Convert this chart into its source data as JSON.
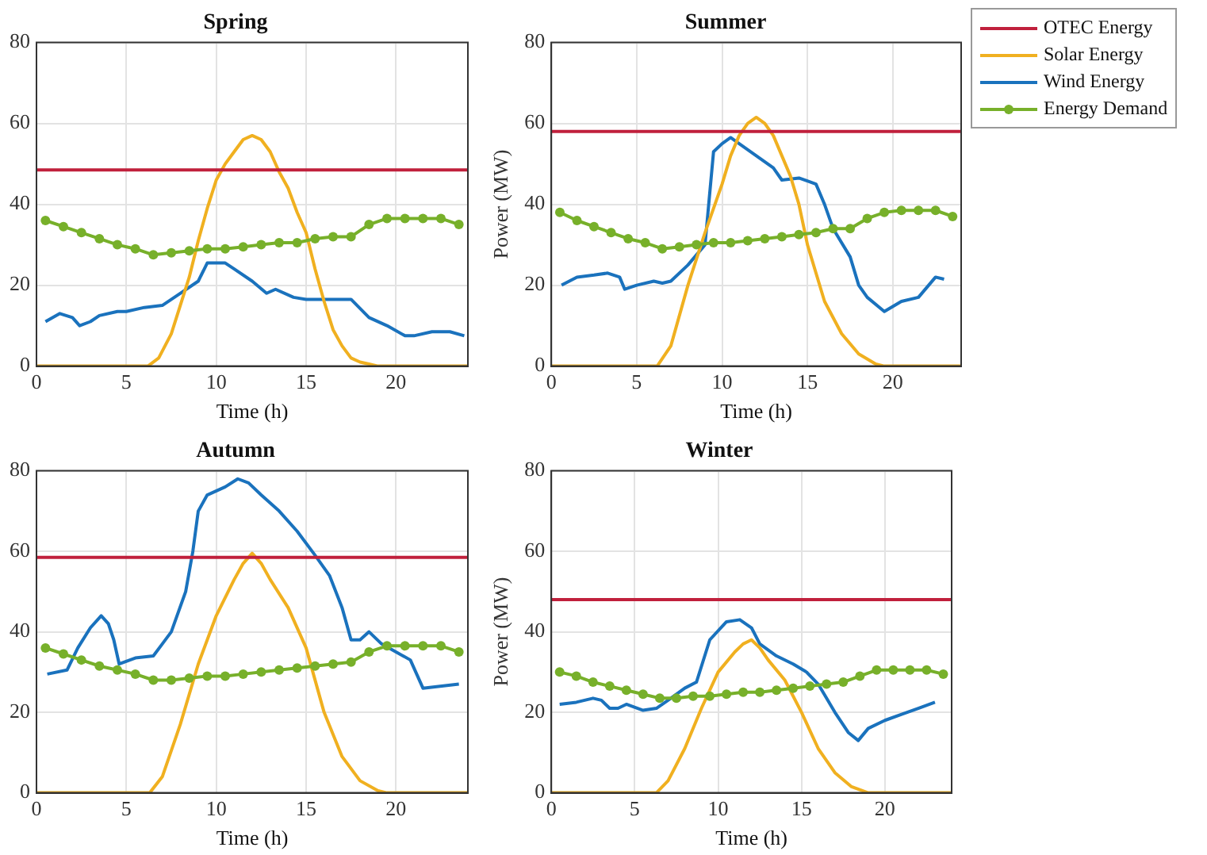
{
  "chart_data": [
    {
      "type": "line",
      "title": "Spring",
      "xlabel": "Time (h)",
      "xlim": [
        0,
        24
      ],
      "xticks": [
        0,
        5,
        10,
        15,
        20
      ],
      "ylim": [
        0,
        80
      ],
      "yticks": [
        0,
        20,
        40,
        60,
        80
      ],
      "grid": true,
      "line_style": "solid",
      "series": [
        {
          "color": "#c0203c",
          "marker": "none",
          "x": [
            0,
            24
          ],
          "values": [
            48.5,
            48.5
          ]
        },
        {
          "color": "#f0b020",
          "marker": "none",
          "x": [
            0,
            6.2,
            6.8,
            7.5,
            8,
            8.5,
            9,
            9.5,
            10,
            10.5,
            11,
            11.5,
            12,
            12.5,
            13,
            13.5,
            14,
            14.5,
            15,
            15.5,
            16,
            16.5,
            17,
            17.5,
            18,
            18.5,
            19,
            24
          ],
          "values": [
            0,
            0,
            2,
            8,
            15,
            22,
            31,
            39,
            46,
            50,
            53,
            56,
            57,
            56,
            53,
            48,
            44,
            38,
            33,
            24,
            16,
            9,
            5,
            2,
            1,
            0.5,
            0,
            0
          ]
        },
        {
          "color": "#1a72bd",
          "marker": "none",
          "x": [
            0.5,
            1.3,
            2,
            2.4,
            3,
            3.5,
            4.5,
            5,
            6,
            7,
            8,
            9,
            9.5,
            10.5,
            11,
            12,
            12.8,
            13.3,
            14.3,
            15,
            16,
            17.5,
            18.5,
            19.5,
            20.5,
            21,
            22,
            23,
            23.8
          ],
          "values": [
            11,
            13,
            12,
            10,
            11,
            12.5,
            13.5,
            13.5,
            14.5,
            15,
            18,
            21,
            25.5,
            25.5,
            24,
            21,
            18,
            19,
            17,
            16.5,
            16.5,
            16.5,
            12,
            10,
            7.5,
            7.5,
            8.5,
            8.5,
            7.5
          ]
        },
        {
          "color": "#77b02a",
          "marker": "circle",
          "x": [
            0.5,
            1.5,
            2.5,
            3.5,
            4.5,
            5.5,
            6.5,
            7.5,
            8.5,
            9.5,
            10.5,
            11.5,
            12.5,
            13.5,
            14.5,
            15.5,
            16.5,
            17.5,
            18.5,
            19.5,
            20.5,
            21.5,
            22.5,
            23.5
          ],
          "values": [
            36,
            34.5,
            33,
            31.5,
            30,
            29,
            27.5,
            28,
            28.5,
            29,
            29,
            29.5,
            30,
            30.5,
            30.5,
            31.5,
            32,
            32,
            35,
            36.5,
            36.5,
            36.5,
            36.5,
            35
          ]
        }
      ]
    },
    {
      "type": "line",
      "title": "Summer",
      "xlabel": "Time (h)",
      "ylabel": "Power (MW)",
      "xlim": [
        0,
        24
      ],
      "xticks": [
        0,
        5,
        10,
        15,
        20
      ],
      "ylim": [
        0,
        80
      ],
      "yticks": [
        0,
        20,
        40,
        60,
        80
      ],
      "grid": true,
      "legend": "right",
      "line_style": "solid",
      "series": [
        {
          "name": "OTEC Energy",
          "color": "#c0203c",
          "marker": "none",
          "x": [
            0,
            24
          ],
          "values": [
            58,
            58
          ]
        },
        {
          "name": "Solar Energy",
          "color": "#f0b020",
          "marker": "none",
          "x": [
            0,
            6.2,
            7,
            8,
            9,
            10,
            10.5,
            11,
            11.5,
            12,
            12.5,
            13,
            13.5,
            14,
            14.5,
            15,
            16,
            17,
            18,
            19,
            19.5,
            24
          ],
          "values": [
            0,
            0,
            5,
            20,
            33,
            45,
            52,
            57,
            60,
            61.5,
            60,
            57,
            52,
            47,
            40,
            30,
            16,
            8,
            3,
            0.5,
            0,
            0
          ]
        },
        {
          "name": "Wind Energy",
          "color": "#1a72bd",
          "marker": "none",
          "x": [
            0.6,
            1.5,
            2.5,
            3.3,
            4,
            4.3,
            5,
            6,
            6.5,
            7,
            8,
            9,
            9.5,
            10,
            10.5,
            11,
            12,
            13,
            13.5,
            14.5,
            15.5,
            16,
            16.5,
            17.5,
            18,
            18.5,
            19.5,
            20.5,
            21.5,
            22.5,
            23
          ],
          "values": [
            20,
            22,
            22.5,
            23,
            22,
            19,
            20,
            21,
            20.5,
            21,
            25,
            30,
            53,
            55,
            56.5,
            55,
            52,
            49,
            46,
            46.5,
            45,
            40,
            34,
            27,
            20,
            17,
            13.5,
            16,
            17,
            22,
            21.5
          ]
        },
        {
          "name": "Energy Demand",
          "color": "#77b02a",
          "marker": "circle",
          "x": [
            0.5,
            1.5,
            2.5,
            3.5,
            4.5,
            5.5,
            6.5,
            7.5,
            8.5,
            9.5,
            10.5,
            11.5,
            12.5,
            13.5,
            14.5,
            15.5,
            16.5,
            17.5,
            18.5,
            19.5,
            20.5,
            21.5,
            22.5,
            23.5
          ],
          "values": [
            38,
            36,
            34.5,
            33,
            31.5,
            30.5,
            29,
            29.5,
            30,
            30.5,
            30.5,
            31,
            31.5,
            32,
            32.5,
            33,
            34,
            34,
            36.5,
            38,
            38.5,
            38.5,
            38.5,
            37
          ]
        }
      ]
    },
    {
      "type": "line",
      "title": "Autumn",
      "xlabel": "Time (h)",
      "xlim": [
        0,
        24
      ],
      "xticks": [
        0,
        5,
        10,
        15,
        20
      ],
      "ylim": [
        0,
        80
      ],
      "yticks": [
        0,
        20,
        40,
        60,
        80
      ],
      "grid": true,
      "line_style": "solid",
      "series": [
        {
          "color": "#c0203c",
          "marker": "none",
          "x": [
            0,
            24
          ],
          "values": [
            58.5,
            58.5
          ]
        },
        {
          "color": "#f0b020",
          "marker": "none",
          "x": [
            0,
            6.3,
            7,
            8,
            9,
            10,
            11,
            11.5,
            12,
            12.5,
            13,
            14,
            15,
            16,
            17,
            18,
            19,
            19.5,
            24
          ],
          "values": [
            0,
            0,
            4,
            17,
            32,
            44,
            53,
            57,
            59.5,
            57,
            53,
            46,
            36,
            20,
            9,
            3,
            0.5,
            0,
            0
          ]
        },
        {
          "color": "#1a72bd",
          "marker": "none",
          "x": [
            0.6,
            1.7,
            2.3,
            3,
            3.6,
            4,
            4.3,
            4.6,
            5.5,
            6.5,
            7,
            7.5,
            8.3,
            8.7,
            9,
            9.5,
            10.5,
            11.2,
            11.8,
            12.5,
            13.5,
            14.5,
            15.5,
            16.3,
            17,
            17.5,
            18,
            18.5,
            19.2,
            20,
            20.8,
            21.5,
            23.5
          ],
          "values": [
            29.5,
            30.5,
            36,
            41,
            44,
            42,
            38,
            32,
            33.5,
            34,
            37,
            40,
            50,
            60,
            70,
            74,
            76,
            78,
            77,
            74,
            70,
            65,
            59,
            54,
            46,
            38,
            38,
            40,
            37,
            35,
            33,
            26,
            27
          ]
        },
        {
          "color": "#77b02a",
          "marker": "circle",
          "x": [
            0.5,
            1.5,
            2.5,
            3.5,
            4.5,
            5.5,
            6.5,
            7.5,
            8.5,
            9.5,
            10.5,
            11.5,
            12.5,
            13.5,
            14.5,
            15.5,
            16.5,
            17.5,
            18.5,
            19.5,
            20.5,
            21.5,
            22.5,
            23.5
          ],
          "values": [
            36,
            34.5,
            33,
            31.5,
            30.5,
            29.5,
            28,
            28,
            28.5,
            29,
            29,
            29.5,
            30,
            30.5,
            31,
            31.5,
            32,
            32.5,
            35,
            36.5,
            36.5,
            36.5,
            36.5,
            35
          ]
        }
      ]
    },
    {
      "type": "line",
      "title": "Winter",
      "xlabel": "Time (h)",
      "ylabel": "Power (MW)",
      "xlim": [
        0,
        24
      ],
      "xticks": [
        0,
        5,
        10,
        15,
        20
      ],
      "ylim": [
        0,
        80
      ],
      "yticks": [
        0,
        20,
        40,
        60,
        80
      ],
      "grid": true,
      "line_style": "solid",
      "series": [
        {
          "color": "#c0203c",
          "marker": "none",
          "x": [
            0,
            24
          ],
          "values": [
            48,
            48
          ]
        },
        {
          "color": "#f0b020",
          "marker": "none",
          "x": [
            0,
            6.3,
            7,
            8,
            9,
            10,
            11,
            11.5,
            12,
            12.5,
            13,
            14,
            15,
            16,
            17,
            18,
            19,
            24
          ],
          "values": [
            0,
            0,
            3,
            11,
            21,
            30,
            35,
            37,
            38,
            36,
            33,
            28,
            20,
            11,
            5,
            1.5,
            0,
            0
          ]
        },
        {
          "color": "#1a72bd",
          "marker": "none",
          "x": [
            0.5,
            1.5,
            2.5,
            3,
            3.5,
            4,
            4.5,
            5.5,
            6.3,
            7,
            8,
            8.7,
            9.5,
            10.5,
            11.3,
            12,
            12.5,
            13.5,
            14.5,
            15.3,
            16,
            17,
            17.8,
            18.4,
            19,
            20,
            21,
            22,
            23
          ],
          "values": [
            22,
            22.5,
            23.5,
            23,
            21,
            21,
            22,
            20.5,
            21,
            23,
            26,
            27.5,
            38,
            42.5,
            43,
            41,
            37,
            34,
            32,
            30,
            27,
            20,
            15,
            13,
            16,
            18,
            19.5,
            21,
            22.5
          ]
        },
        {
          "color": "#77b02a",
          "marker": "circle",
          "x": [
            0.5,
            1.5,
            2.5,
            3.5,
            4.5,
            5.5,
            6.5,
            7.5,
            8.5,
            9.5,
            10.5,
            11.5,
            12.5,
            13.5,
            14.5,
            15.5,
            16.5,
            17.5,
            18.5,
            19.5,
            20.5,
            21.5,
            22.5,
            23.5
          ],
          "values": [
            30,
            29,
            27.5,
            26.5,
            25.5,
            24.5,
            23.5,
            23.5,
            24,
            24,
            24.5,
            25,
            25,
            25.5,
            26,
            26.5,
            27,
            27.5,
            29,
            30.5,
            30.5,
            30.5,
            30.5,
            29.5
          ]
        }
      ]
    }
  ]
}
